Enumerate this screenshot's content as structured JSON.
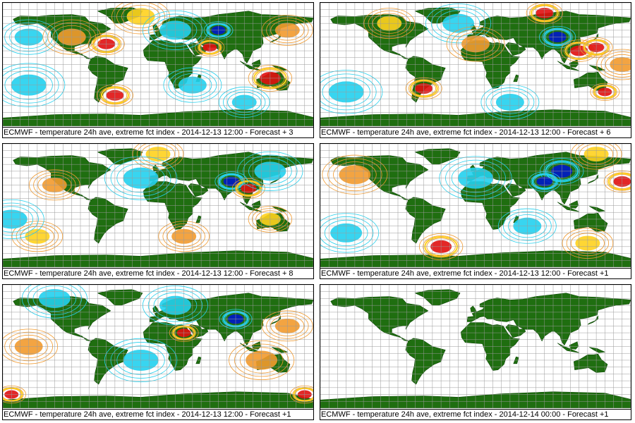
{
  "colors": {
    "land": "#1f6e10",
    "grid": "#9a9a9a",
    "cold_light": "#22d0ee",
    "cold_dark": "#0018c8",
    "warm_light": "#f29a2e",
    "warm_mid": "#ffd21e",
    "warm_dark": "#e01010"
  },
  "panels": [
    {
      "caption": "ECMWF - temperature 24h ave, extreme fct index - 2014-12-13 12:00 - Forecast + 3",
      "has_field": true,
      "blobs": [
        {
          "lon": -60,
          "lat": 30,
          "type": "warm_dark",
          "r": 10
        },
        {
          "lon": -20,
          "lat": 70,
          "type": "warm_mid",
          "r": 16
        },
        {
          "lon": 60,
          "lat": 25,
          "type": "warm_dark",
          "r": 8
        },
        {
          "lon": 130,
          "lat": -20,
          "type": "warm_dark",
          "r": 12
        },
        {
          "lon": -50,
          "lat": -45,
          "type": "warm_dark",
          "r": 10
        },
        {
          "lon": 70,
          "lat": 50,
          "type": "cold_dark",
          "r": 8
        },
        {
          "lon": 20,
          "lat": 50,
          "type": "cold_light",
          "r": 18
        },
        {
          "lon": -150,
          "lat": 40,
          "type": "cold_light",
          "r": 16
        },
        {
          "lon": -150,
          "lat": -30,
          "type": "cold_light",
          "r": 20
        },
        {
          "lon": 40,
          "lat": -30,
          "type": "cold_light",
          "r": 16
        },
        {
          "lon": 100,
          "lat": -55,
          "type": "cold_light",
          "r": 14
        },
        {
          "lon": -100,
          "lat": 40,
          "type": "warm_light",
          "r": 16
        },
        {
          "lon": 150,
          "lat": 50,
          "type": "warm_light",
          "r": 14
        }
      ]
    },
    {
      "caption": "ECMWF - temperature 24h ave, extreme fct index - 2014-12-13 12:00 - Forecast + 6",
      "has_field": true,
      "blobs": [
        {
          "lon": 80,
          "lat": 75,
          "type": "warm_dark",
          "r": 10
        },
        {
          "lon": 95,
          "lat": 40,
          "type": "cold_dark",
          "r": 10
        },
        {
          "lon": 120,
          "lat": 20,
          "type": "warm_dark",
          "r": 10
        },
        {
          "lon": 140,
          "lat": 25,
          "type": "warm_dark",
          "r": 9
        },
        {
          "lon": -100,
          "lat": 60,
          "type": "warm_mid",
          "r": 14
        },
        {
          "lon": -60,
          "lat": -35,
          "type": "warm_dark",
          "r": 10
        },
        {
          "lon": -20,
          "lat": 60,
          "type": "cold_light",
          "r": 18
        },
        {
          "lon": -150,
          "lat": -40,
          "type": "cold_light",
          "r": 20
        },
        {
          "lon": 40,
          "lat": -55,
          "type": "cold_light",
          "r": 16
        },
        {
          "lon": 150,
          "lat": -40,
          "type": "warm_dark",
          "r": 8
        },
        {
          "lon": 0,
          "lat": 30,
          "type": "warm_light",
          "r": 16
        },
        {
          "lon": 170,
          "lat": 0,
          "type": "warm_light",
          "r": 14
        }
      ]
    },
    {
      "caption": "ECMWF - temperature 24h ave, extreme fct index - 2014-12-13 12:00 - Forecast + 8",
      "has_field": true,
      "blobs": [
        {
          "lon": 85,
          "lat": 35,
          "type": "cold_dark",
          "r": 9
        },
        {
          "lon": 105,
          "lat": 25,
          "type": "warm_dark",
          "r": 9
        },
        {
          "lon": -140,
          "lat": -45,
          "type": "warm_mid",
          "r": 14
        },
        {
          "lon": 0,
          "lat": 75,
          "type": "warm_mid",
          "r": 14
        },
        {
          "lon": 30,
          "lat": -45,
          "type": "warm_light",
          "r": 14
        },
        {
          "lon": -20,
          "lat": 40,
          "type": "cold_light",
          "r": 20
        },
        {
          "lon": 130,
          "lat": 50,
          "type": "cold_light",
          "r": 18
        },
        {
          "lon": -170,
          "lat": -20,
          "type": "cold_light",
          "r": 18
        },
        {
          "lon": 130,
          "lat": -20,
          "type": "warm_mid",
          "r": 12
        },
        {
          "lon": -120,
          "lat": 30,
          "type": "warm_light",
          "r": 14
        }
      ]
    },
    {
      "caption": "ECMWF - temperature 24h ave, extreme fct index - 2014-12-13 12:00 - Forecast +1",
      "has_field": true,
      "blobs": [
        {
          "lon": 100,
          "lat": 50,
          "type": "cold_dark",
          "r": 12
        },
        {
          "lon": 80,
          "lat": 35,
          "type": "cold_dark",
          "r": 9
        },
        {
          "lon": 170,
          "lat": 35,
          "type": "warm_dark",
          "r": 10
        },
        {
          "lon": -40,
          "lat": -60,
          "type": "warm_dark",
          "r": 12
        },
        {
          "lon": 140,
          "lat": 75,
          "type": "warm_mid",
          "r": 14
        },
        {
          "lon": 130,
          "lat": -55,
          "type": "warm_mid",
          "r": 14
        },
        {
          "lon": -140,
          "lat": 45,
          "type": "warm_light",
          "r": 18
        },
        {
          "lon": 0,
          "lat": 40,
          "type": "cold_light",
          "r": 20
        },
        {
          "lon": -150,
          "lat": -40,
          "type": "cold_light",
          "r": 18
        },
        {
          "lon": 60,
          "lat": -30,
          "type": "cold_light",
          "r": 16
        }
      ]
    },
    {
      "caption": "ECMWF - temperature 24h ave, extreme fct index - 2014-12-13 12:00 - Forecast +1",
      "has_field": true,
      "blobs": [
        {
          "lon": 90,
          "lat": 40,
          "type": "cold_dark",
          "r": 9
        },
        {
          "lon": 30,
          "lat": 20,
          "type": "warm_dark",
          "r": 8
        },
        {
          "lon": -170,
          "lat": -70,
          "type": "warm_dark",
          "r": 8
        },
        {
          "lon": 170,
          "lat": -70,
          "type": "warm_dark",
          "r": 8
        },
        {
          "lon": -120,
          "lat": 70,
          "type": "cold_light",
          "r": 18
        },
        {
          "lon": 20,
          "lat": 60,
          "type": "cold_light",
          "r": 18
        },
        {
          "lon": -20,
          "lat": -20,
          "type": "cold_light",
          "r": 20
        },
        {
          "lon": 120,
          "lat": -20,
          "type": "warm_light",
          "r": 18
        },
        {
          "lon": -150,
          "lat": 0,
          "type": "warm_light",
          "r": 16
        },
        {
          "lon": 150,
          "lat": 30,
          "type": "warm_light",
          "r": 14
        }
      ]
    },
    {
      "caption": "ECMWF - temperature 24h ave, extreme fct index - 2014-12-14 00:00 - Forecast +1",
      "has_field": false,
      "blobs": []
    }
  ]
}
